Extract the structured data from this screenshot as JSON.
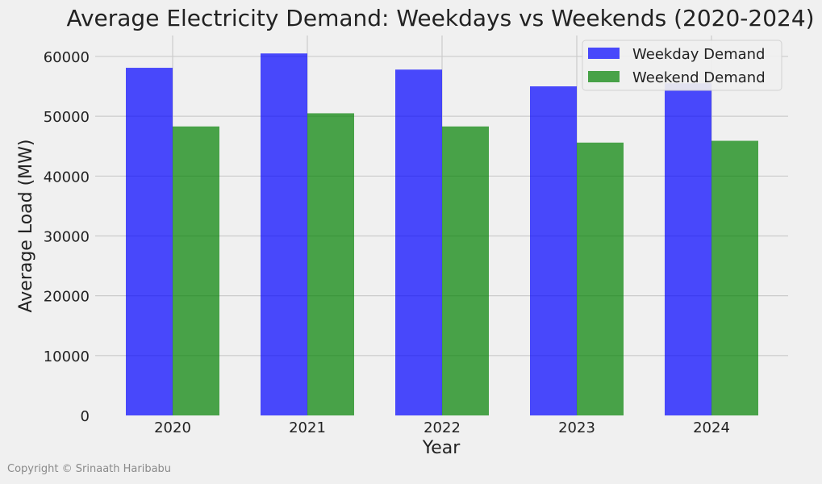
{
  "chart_data": {
    "type": "bar",
    "title": "Average Electricity Demand: Weekdays vs Weekends (2020-2024)",
    "xlabel": "Year",
    "ylabel": "Average Load (MW)",
    "categories": [
      "2020",
      "2021",
      "2022",
      "2023",
      "2024"
    ],
    "series": [
      {
        "name": "Weekday Demand",
        "color": "#0000ff",
        "values": [
          58100,
          60500,
          57800,
          55000,
          55500
        ]
      },
      {
        "name": "Weekend Demand",
        "color": "#008000",
        "values": [
          48300,
          50500,
          48300,
          45600,
          45900
        ]
      }
    ],
    "ylim": [
      0,
      63500
    ],
    "yticks": [
      0,
      10000,
      20000,
      30000,
      40000,
      50000,
      60000
    ],
    "grid": true,
    "legend_position": "top-right"
  },
  "footer": {
    "copyright": "Copyright © Srinaath Haribabu"
  }
}
